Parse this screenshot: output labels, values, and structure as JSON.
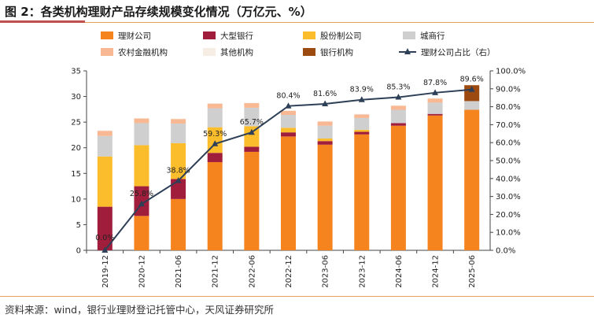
{
  "page": {
    "title": "图 2：各类机构理财产品存续规模变化情况（万亿元、%）",
    "source": "资料来源：wind，银行业理财登记托管中心，天风证券研究所"
  },
  "chart_data": {
    "type": "bar",
    "stacked": true,
    "categories": [
      "2019-12",
      "2020-12",
      "2021-06",
      "2021-12",
      "2022-06",
      "2022-12",
      "2023-06",
      "2023-12",
      "2024-06",
      "2024-12",
      "2025-06"
    ],
    "ylim": [
      0,
      35
    ],
    "yticks": [
      "0",
      "5",
      "10",
      "15",
      "20",
      "25",
      "30",
      "35"
    ],
    "y2lim": [
      0,
      100
    ],
    "y2ticks": [
      "0.0%",
      "10.0%",
      "20.0%",
      "30.0%",
      "40.0%",
      "50.0%",
      "60.0%",
      "70.0%",
      "80.0%",
      "90.0%",
      "100.0%"
    ],
    "series": [
      {
        "name": "理财公司",
        "color": "#f5841f",
        "values": [
          0,
          6.7,
          10.0,
          17.2,
          19.2,
          22.2,
          20.6,
          22.6,
          24.3,
          26.3,
          27.4
        ]
      },
      {
        "name": "大型银行",
        "color": "#a01d3c",
        "values": [
          8.5,
          5.8,
          3.9,
          1.8,
          1.0,
          0.8,
          0.7,
          0.5,
          0.5,
          0.3,
          0
        ]
      },
      {
        "name": "股份制公司",
        "color": "#fbbd2c",
        "values": [
          9.8,
          8.0,
          7.0,
          5.0,
          4.0,
          0.9,
          0.5,
          0.4,
          0,
          0,
          0
        ]
      },
      {
        "name": "城商行",
        "color": "#cfcfcf",
        "values": [
          4.0,
          4.3,
          3.8,
          3.7,
          3.6,
          2.5,
          2.5,
          2.3,
          2.6,
          2.2,
          1.7
        ]
      },
      {
        "name": "农村金融机构",
        "color": "#f7b893",
        "values": [
          1.0,
          0.9,
          0.9,
          0.9,
          0.9,
          0.8,
          0.8,
          0.7,
          0.8,
          0.8,
          0
        ]
      },
      {
        "name": "其他机构",
        "color": "#f6ede4",
        "values": [
          0.1,
          0.1,
          0.1,
          0.1,
          0.1,
          0.1,
          0.1,
          0.1,
          0.1,
          0.1,
          0
        ]
      },
      {
        "name": "银行机构",
        "color": "#9c4a10",
        "values": [
          0,
          0,
          0,
          0,
          0,
          0,
          0,
          0,
          0,
          0,
          3.1
        ]
      }
    ],
    "line": {
      "name": "理财公司占比（右）",
      "color": "#2e4057",
      "values": [
        0.0,
        25.8,
        38.8,
        59.3,
        65.7,
        80.4,
        81.6,
        83.9,
        85.3,
        87.8,
        89.6
      ],
      "labels": [
        "0.0%",
        "25.8%",
        "38.8%",
        "59.3%",
        "65.7%",
        "80.4%",
        "81.6%",
        "83.9%",
        "85.3%",
        "87.8%",
        "89.6%"
      ]
    }
  }
}
